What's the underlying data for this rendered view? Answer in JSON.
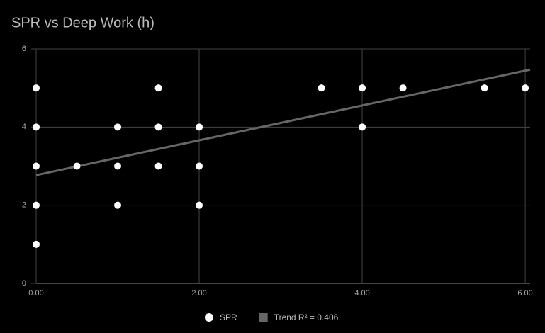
{
  "chart_data": {
    "type": "scatter",
    "title": "SPR vs Deep Work (h)",
    "series": [
      {
        "name": "SPR",
        "color": "#ffffff",
        "x": [
          0,
          0,
          0,
          0,
          0,
          0.5,
          1,
          1,
          1,
          1.5,
          1.5,
          1.5,
          2,
          2,
          2,
          3.5,
          4,
          4,
          4.5,
          5.5,
          6
        ],
        "values": [
          5,
          4,
          3,
          2,
          1,
          3,
          4,
          3,
          2,
          5,
          4,
          3,
          4,
          3,
          2,
          5,
          5,
          4,
          5,
          5,
          5
        ]
      },
      {
        "name": "Trend R² = 0.406",
        "color": "#666666",
        "type": "line",
        "x": [
          0,
          6.06
        ],
        "values": [
          2.77,
          5.47
        ]
      }
    ],
    "xlim": [
      0,
      6.06
    ],
    "ylim": [
      0,
      6
    ],
    "xticks": [
      {
        "value": 0,
        "label": "0.00"
      },
      {
        "value": 2,
        "label": "2.00"
      },
      {
        "value": 4,
        "label": "4.00"
      },
      {
        "value": 6,
        "label": "6.00"
      }
    ],
    "yticks": [
      0,
      2,
      4,
      6
    ],
    "grid": true
  }
}
